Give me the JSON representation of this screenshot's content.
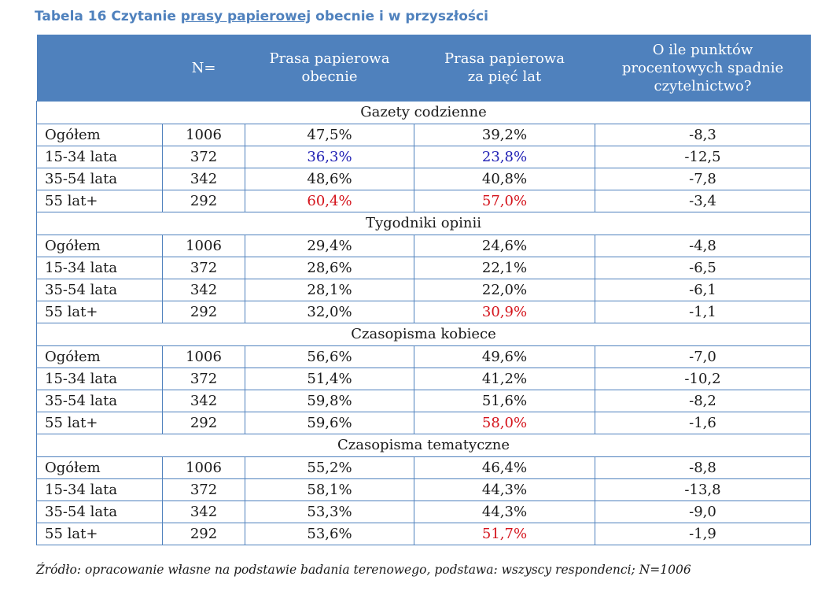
{
  "title": {
    "pre": "Tabela 16 Czytanie ",
    "underlined": "prasy papierowej",
    "post": " obecnie i w przyszłości"
  },
  "header": {
    "c0": "",
    "c1": "N=",
    "c2_l1": "Prasa papierowa",
    "c2_l2": "obecnie",
    "c3_l1": "Prasa papierowa",
    "c3_l2": "za pięć lat",
    "c4_l1": "O ile punktów",
    "c4_l2": "procentowych spadnie",
    "c4_l3": "czytelnictwo?"
  },
  "sections": [
    {
      "title": "Gazety codzienne",
      "rows": [
        {
          "group": "Ogółem",
          "n": "1006",
          "now": "47,5%",
          "future": "39,2%",
          "drop": "-8,3",
          "now_color": "",
          "future_color": ""
        },
        {
          "group": "15-34 lata",
          "n": "372",
          "now": "36,3%",
          "future": "23,8%",
          "drop": "-12,5",
          "now_color": "blue",
          "future_color": "blue"
        },
        {
          "group": "35-54 lata",
          "n": "342",
          "now": "48,6%",
          "future": "40,8%",
          "drop": "-7,8",
          "now_color": "",
          "future_color": ""
        },
        {
          "group": "55 lat+",
          "n": "292",
          "now": "60,4%",
          "future": "57,0%",
          "drop": "-3,4",
          "now_color": "red",
          "future_color": "red"
        }
      ]
    },
    {
      "title": "Tygodniki opinii",
      "rows": [
        {
          "group": "Ogółem",
          "n": "1006",
          "now": "29,4%",
          "future": "24,6%",
          "drop": "-4,8",
          "now_color": "",
          "future_color": ""
        },
        {
          "group": "15-34 lata",
          "n": "372",
          "now": "28,6%",
          "future": "22,1%",
          "drop": "-6,5",
          "now_color": "",
          "future_color": ""
        },
        {
          "group": "35-54 lata",
          "n": "342",
          "now": "28,1%",
          "future": "22,0%",
          "drop": "-6,1",
          "now_color": "",
          "future_color": ""
        },
        {
          "group": "55 lat+",
          "n": "292",
          "now": "32,0%",
          "future": "30,9%",
          "drop": "-1,1",
          "now_color": "",
          "future_color": "red"
        }
      ]
    },
    {
      "title": "Czasopisma kobiece",
      "rows": [
        {
          "group": "Ogółem",
          "n": "1006",
          "now": "56,6%",
          "future": "49,6%",
          "drop": "-7,0",
          "now_color": "",
          "future_color": ""
        },
        {
          "group": "15-34 lata",
          "n": "372",
          "now": "51,4%",
          "future": "41,2%",
          "drop": "-10,2",
          "now_color": "",
          "future_color": ""
        },
        {
          "group": "35-54 lata",
          "n": "342",
          "now": "59,8%",
          "future": "51,6%",
          "drop": "-8,2",
          "now_color": "",
          "future_color": ""
        },
        {
          "group": "55 lat+",
          "n": "292",
          "now": "59,6%",
          "future": "58,0%",
          "drop": "-1,6",
          "now_color": "",
          "future_color": "red"
        }
      ]
    },
    {
      "title": "Czasopisma tematyczne",
      "rows": [
        {
          "group": "Ogółem",
          "n": "1006",
          "now": "55,2%",
          "future": "46,4%",
          "drop": "-8,8",
          "now_color": "",
          "future_color": ""
        },
        {
          "group": "15-34 lata",
          "n": "372",
          "now": "58,1%",
          "future": "44,3%",
          "drop": "-13,8",
          "now_color": "",
          "future_color": ""
        },
        {
          "group": "35-54 lata",
          "n": "342",
          "now": "53,3%",
          "future": "44,3%",
          "drop": "-9,0",
          "now_color": "",
          "future_color": ""
        },
        {
          "group": "55 lat+",
          "n": "292",
          "now": "53,6%",
          "future": "51,7%",
          "drop": "-1,9",
          "now_color": "",
          "future_color": "red"
        }
      ]
    }
  ],
  "footer": "Źródło: opracowanie własne na podstawie badania terenowego, podstawa: wszyscy respondenci; N=1006",
  "colors": {
    "header_bg": "#4f81bd",
    "border": "#4f81bd",
    "highlight_blue": "#1f1fb4",
    "highlight_red": "#d4141c"
  }
}
